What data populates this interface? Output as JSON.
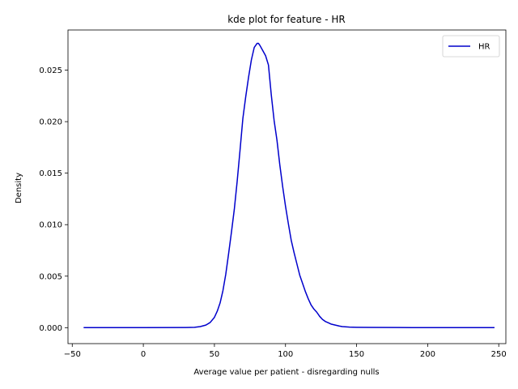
{
  "chart_data": {
    "type": "line",
    "title": "kde plot for feature -  HR",
    "xlabel": "Average value per patient - disregarding nulls",
    "ylabel": "Density",
    "xlim": [
      -53,
      255
    ],
    "ylim": [
      -0.00155,
      0.0289
    ],
    "xticks": [
      -50,
      0,
      50,
      100,
      150,
      200,
      250
    ],
    "xtick_labels": [
      "−50",
      "0",
      "50",
      "100",
      "150",
      "200",
      "250"
    ],
    "yticks": [
      0.0,
      0.005,
      0.01,
      0.015,
      0.02,
      0.025
    ],
    "ytick_labels": [
      "0.000",
      "0.005",
      "0.010",
      "0.015",
      "0.020",
      "0.025"
    ],
    "grid": false,
    "legend_position": "top-right",
    "series": [
      {
        "name": "HR",
        "color": "#0000cc",
        "x": [
          -42,
          0,
          30,
          36,
          40,
          44,
          47,
          50,
          52,
          54,
          56,
          58,
          60,
          62,
          64,
          66,
          68,
          70,
          72,
          74,
          76,
          78,
          80,
          81,
          82,
          84,
          86,
          88,
          90,
          92,
          94,
          96,
          98,
          100,
          102,
          104,
          106,
          108,
          110,
          112,
          114,
          116,
          118,
          120,
          122,
          124,
          126,
          128,
          130,
          132,
          135,
          138,
          140,
          145,
          150,
          160,
          180,
          200,
          230,
          247
        ],
        "y": [
          0.0,
          0.0,
          1e-05,
          3e-05,
          0.0001,
          0.00025,
          0.0005,
          0.001,
          0.0016,
          0.0024,
          0.0036,
          0.0052,
          0.0072,
          0.0093,
          0.0115,
          0.0142,
          0.0172,
          0.0203,
          0.0224,
          0.0243,
          0.026,
          0.0272,
          0.0276,
          0.0276,
          0.0274,
          0.0269,
          0.0264,
          0.0255,
          0.0226,
          0.0201,
          0.0182,
          0.0158,
          0.0137,
          0.0118,
          0.0101,
          0.0085,
          0.0073,
          0.0062,
          0.0051,
          0.0043,
          0.0035,
          0.0028,
          0.0022,
          0.0018,
          0.0015,
          0.0011,
          0.0008,
          0.0006,
          0.00048,
          0.00035,
          0.00025,
          0.00015,
          0.0001,
          5e-05,
          3e-05,
          2e-05,
          1e-05,
          0.0,
          0.0,
          0.0
        ]
      }
    ]
  }
}
